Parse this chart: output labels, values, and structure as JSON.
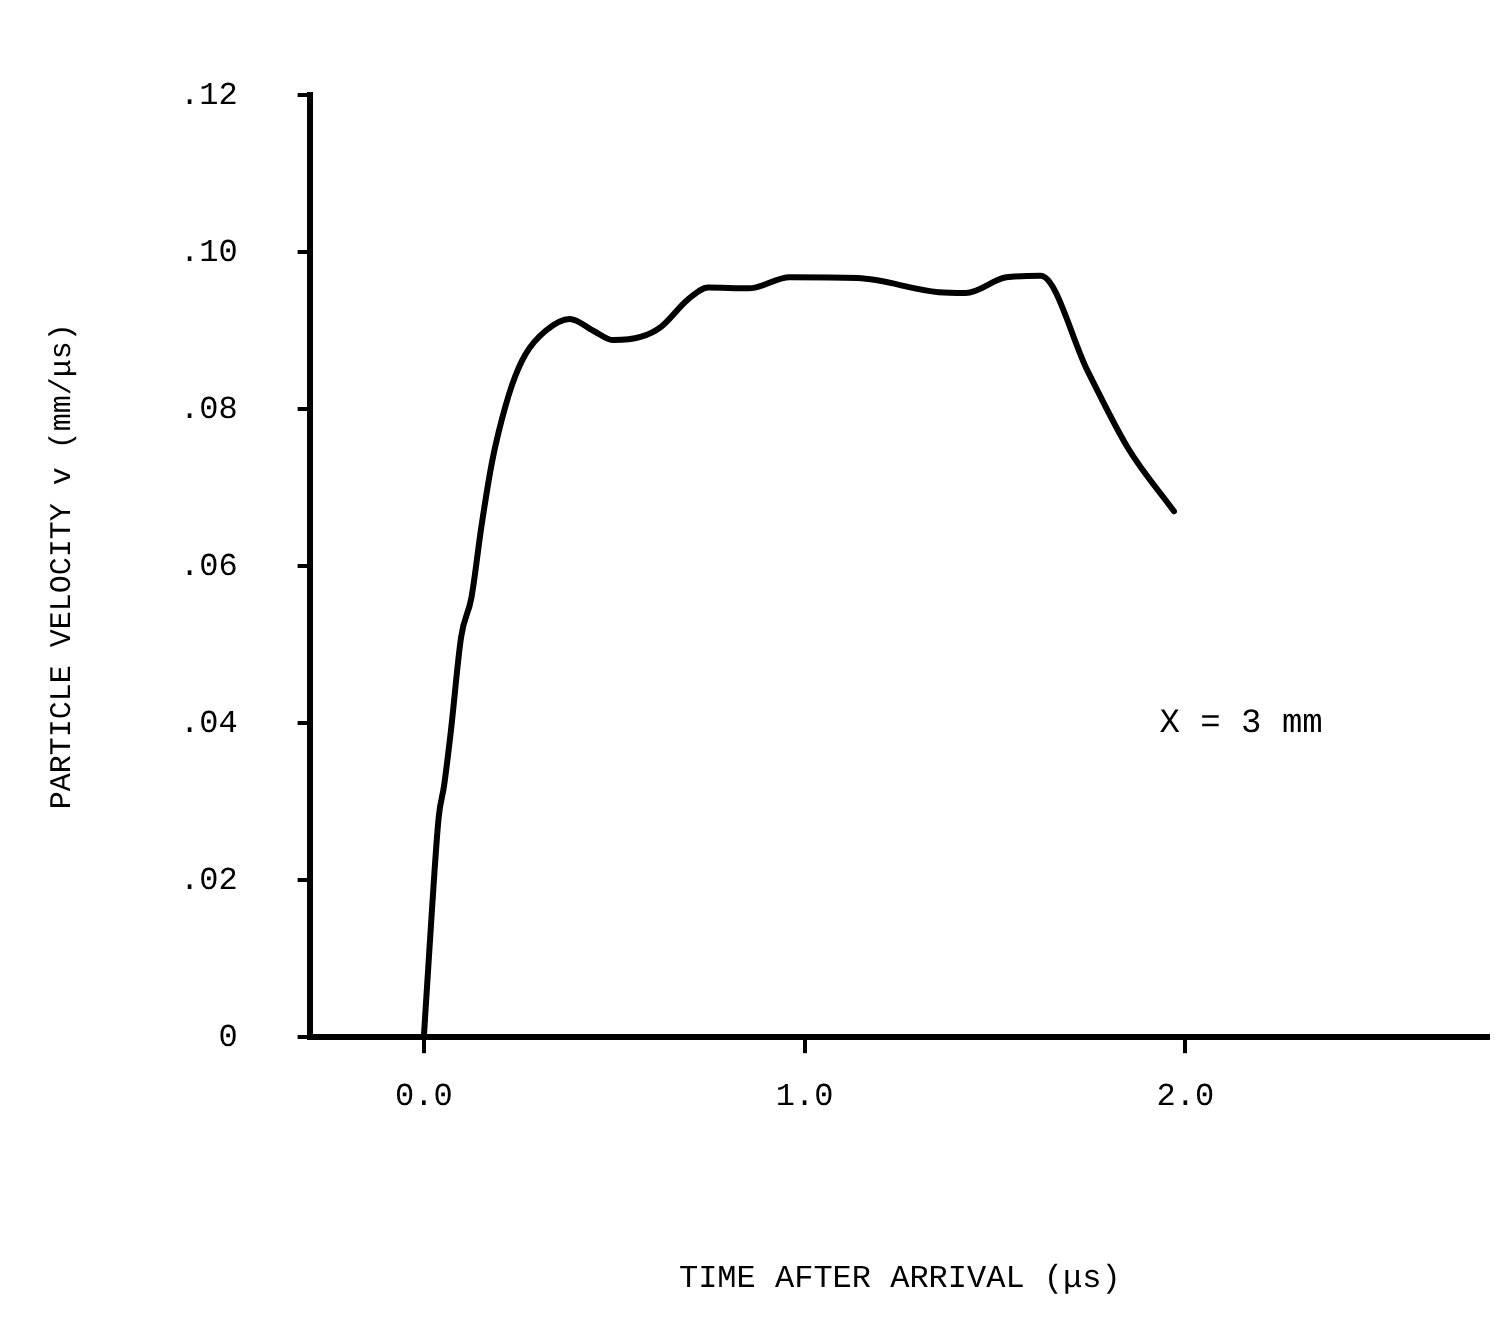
{
  "chart_data": {
    "type": "line",
    "xlabel": "TIME AFTER ARRIVAL (μs)",
    "ylabel": "PARTICLE VELOCITY v (mm/μs)",
    "x": [
      0,
      0.021,
      0.039,
      0.053,
      0.071,
      0.098,
      0.125,
      0.151,
      0.178,
      0.196,
      0.231,
      0.267,
      0.32,
      0.383,
      0.445,
      0.498,
      0.569,
      0.623,
      0.694,
      0.747,
      0.854,
      0.961,
      1.139,
      1.352,
      1.423,
      1.53,
      1.62,
      1.744,
      1.85,
      1.97
    ],
    "series": [
      {
        "color": "#000000",
        "values": [
          0,
          0.016,
          0.028,
          0.032,
          0.039,
          0.051,
          0.056,
          0.065,
          0.073,
          0.077,
          0.083,
          0.087,
          0.09,
          0.0915,
          0.09,
          0.0888,
          0.0892,
          0.0905,
          0.094,
          0.0955,
          0.0954,
          0.0968,
          0.0967,
          0.0949,
          0.0948,
          0.0968,
          0.097,
          0.0848,
          0.075,
          0.067
        ]
      }
    ],
    "xlim": [
      -0.3,
      2.8
    ],
    "xticks": [
      {
        "value": 0,
        "label": "0.0"
      },
      {
        "value": 1,
        "label": "1.0"
      },
      {
        "value": 2,
        "label": "2.0"
      }
    ],
    "ylim": [
      0,
      0.12
    ],
    "yticks": [
      0,
      {
        "value": 0.02,
        "label": ".02"
      },
      {
        "value": 0.04,
        "label": ".04"
      },
      {
        "value": 0.06,
        "label": ".06"
      },
      {
        "value": 0.08,
        "label": ".08"
      },
      {
        "value": 0.1,
        "label": ".10"
      },
      {
        "value": 0.12,
        "label": ".12"
      }
    ],
    "annotations": [
      "X = 3 mm"
    ],
    "grid": false,
    "legend": false,
    "marker": "none",
    "line_style": "solid"
  }
}
